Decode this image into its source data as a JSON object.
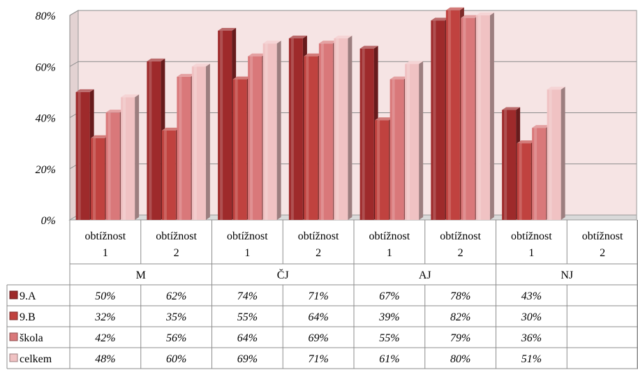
{
  "chart_data": {
    "type": "bar",
    "y_ticks": [
      "0%",
      "20%",
      "40%",
      "60%",
      "80%"
    ],
    "ylim": [
      0,
      80
    ],
    "groups": [
      "M",
      "ČJ",
      "AJ",
      "NJ"
    ],
    "subcategories": [
      [
        "obtížnost",
        "1"
      ],
      [
        "obtížnost",
        "2"
      ],
      [
        "obtížnost",
        "1"
      ],
      [
        "obtížnost",
        "2"
      ],
      [
        "obtížnost",
        "1"
      ],
      [
        "obtížnost",
        "2"
      ],
      [
        "obtížnost",
        "1"
      ],
      [
        "obtížnost",
        "2"
      ]
    ],
    "series": [
      {
        "name": "9.A",
        "color": "#9e2a2b",
        "values": [
          50,
          62,
          74,
          71,
          67,
          78,
          43,
          null
        ]
      },
      {
        "name": "9.B",
        "color": "#c0423f",
        "values": [
          32,
          35,
          55,
          64,
          39,
          82,
          30,
          null
        ]
      },
      {
        "name": "škola",
        "color": "#d9787a",
        "values": [
          42,
          56,
          64,
          69,
          55,
          79,
          36,
          null
        ]
      },
      {
        "name": "celkem",
        "color": "#f0c2c3",
        "values": [
          48,
          60,
          69,
          71,
          61,
          80,
          51,
          null
        ]
      }
    ],
    "table": [
      [
        "50%",
        "62%",
        "74%",
        "71%",
        "67%",
        "78%",
        "43%",
        ""
      ],
      [
        "32%",
        "35%",
        "55%",
        "64%",
        "39%",
        "82%",
        "30%",
        ""
      ],
      [
        "42%",
        "56%",
        "64%",
        "69%",
        "55%",
        "79%",
        "36%",
        ""
      ],
      [
        "48%",
        "60%",
        "69%",
        "71%",
        "61%",
        "80%",
        "51%",
        ""
      ]
    ],
    "grid": true,
    "wall_color": "#f6e4e4"
  }
}
